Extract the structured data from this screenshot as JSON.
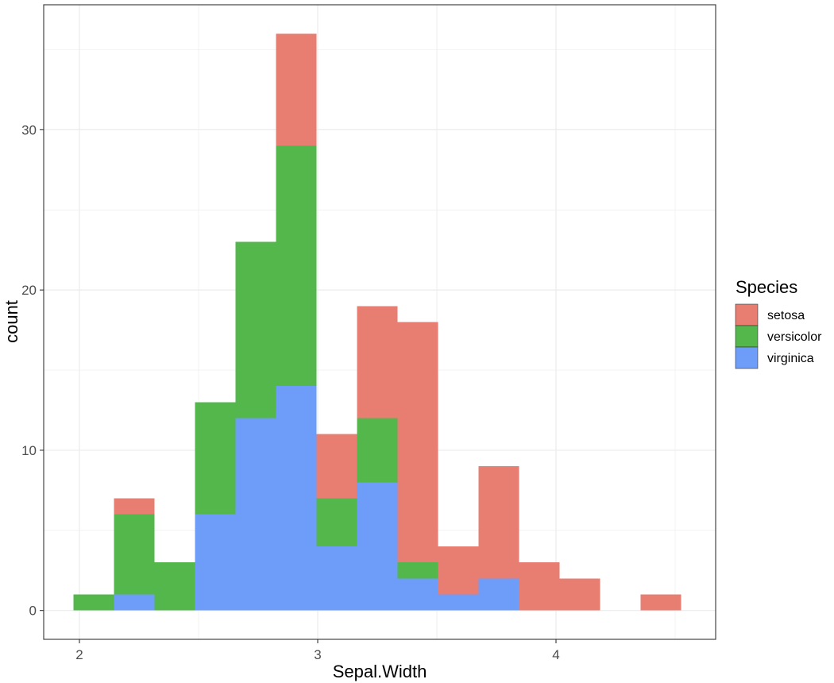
{
  "chart_data": {
    "type": "bar",
    "stacked": true,
    "histogram": true,
    "xlabel": "Sepal.Width",
    "ylabel": "count",
    "xlim": [
      1.85,
      4.67
    ],
    "ylim": [
      -1.8,
      37.8
    ],
    "x_ticks": [
      2,
      3,
      4
    ],
    "x_tick_labels": [
      "2",
      "3",
      "4"
    ],
    "y_ticks": [
      0,
      10,
      20,
      30
    ],
    "y_tick_labels": [
      "0",
      "10",
      "20",
      "30"
    ],
    "bin_width": 0.17,
    "bin_centers": [
      2.06,
      2.23,
      2.4,
      2.57,
      2.74,
      2.91,
      3.08,
      3.25,
      3.42,
      3.59,
      3.76,
      3.93,
      4.1,
      4.27,
      4.44
    ],
    "series": [
      {
        "name": "setosa",
        "color": "#E87D72",
        "values": [
          0,
          1,
          0,
          0,
          0,
          7,
          4,
          7,
          15,
          3,
          7,
          3,
          2,
          0,
          1
        ]
      },
      {
        "name": "versicolor",
        "color": "#53B74C",
        "values": [
          1,
          5,
          3,
          7,
          11,
          15,
          3,
          4,
          1,
          0,
          0,
          0,
          0,
          0,
          0
        ]
      },
      {
        "name": "virginica",
        "color": "#6D9CF9",
        "values": [
          0,
          1,
          0,
          6,
          12,
          14,
          4,
          8,
          2,
          1,
          2,
          0,
          0,
          0,
          0
        ]
      }
    ],
    "legend": {
      "title": "Species",
      "position": "right"
    },
    "grid": true
  }
}
